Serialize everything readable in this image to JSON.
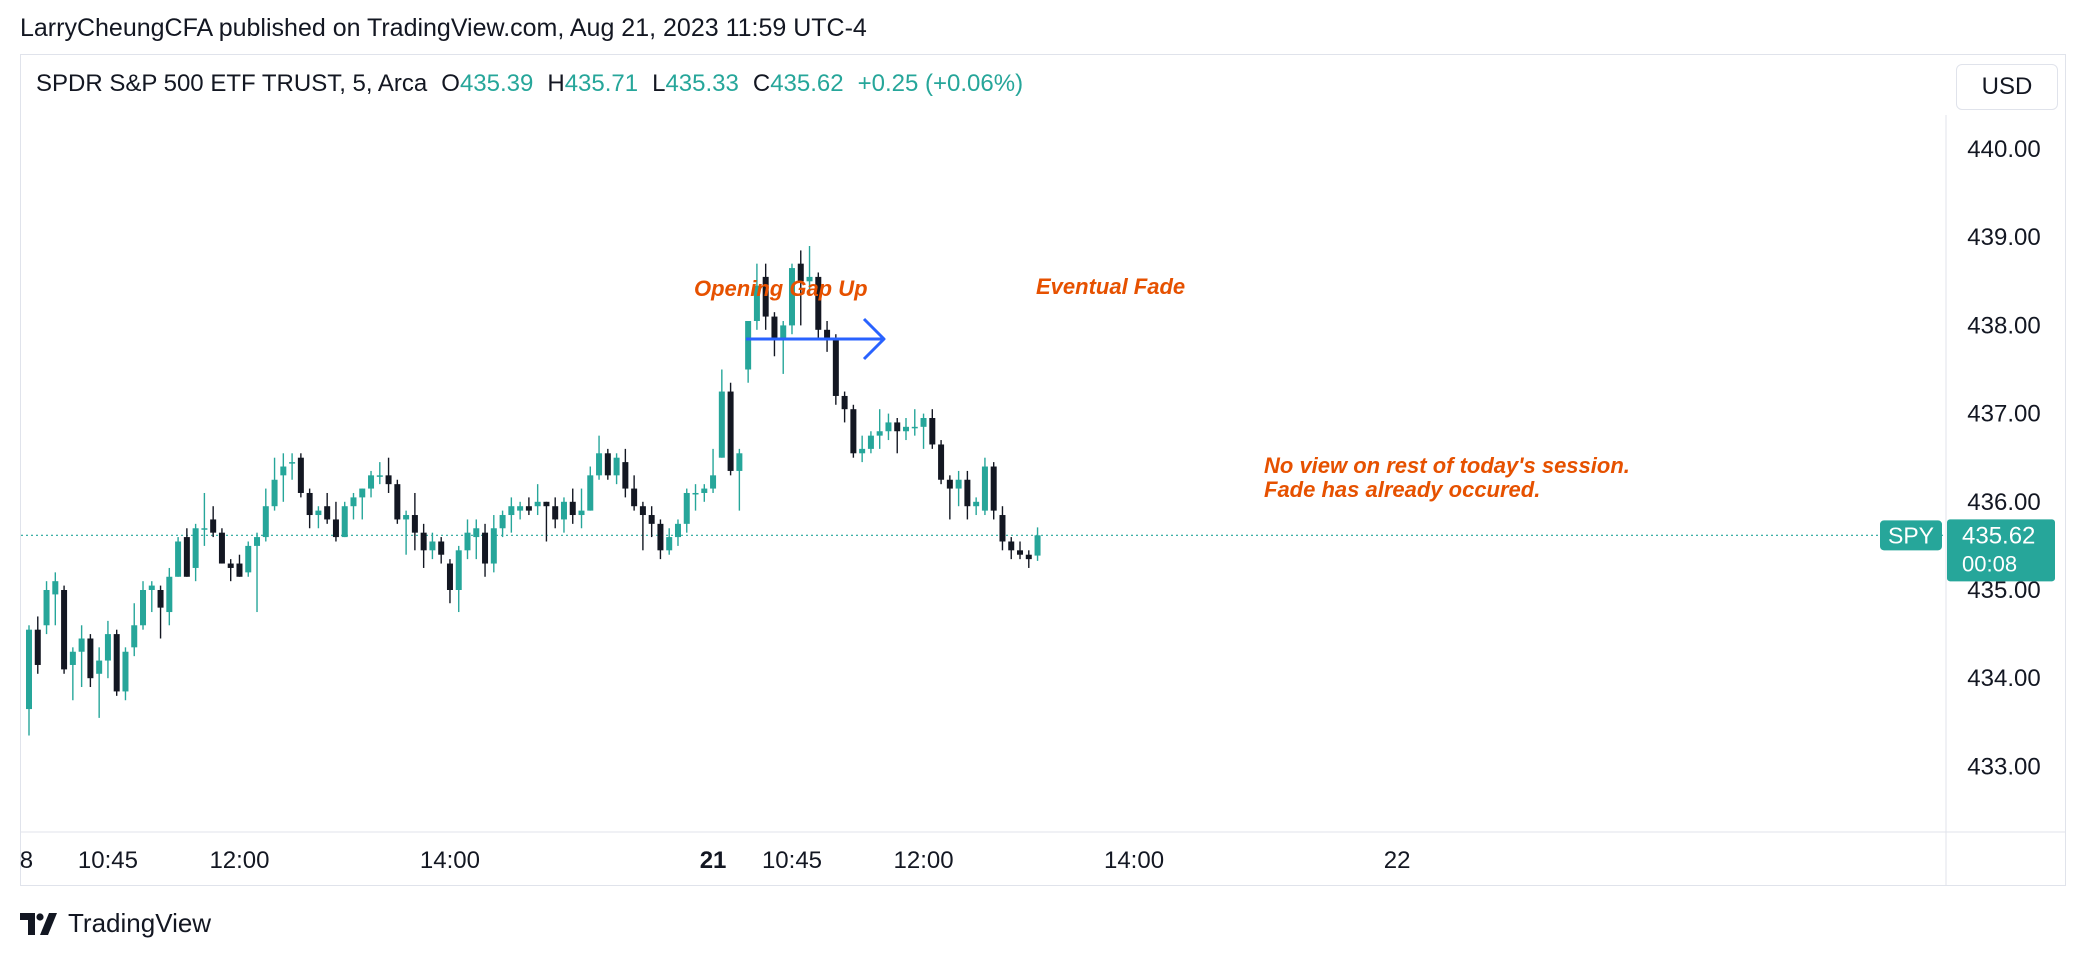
{
  "publisher_line": "LarryCheungCFA published on TradingView.com, Aug 21, 2023 11:59 UTC-4",
  "legend": {
    "symbol": "SPDR S&P 500 ETF TRUST, 5, Arca",
    "o_label": "O",
    "o_value": "435.39",
    "h_label": "H",
    "h_value": "435.71",
    "l_label": "L",
    "l_value": "435.33",
    "c_label": "C",
    "c_value": "435.62",
    "change": "+0.25 (+0.06%)"
  },
  "currency": "USD",
  "brand": "TradingView",
  "colors": {
    "up": "#26a69a",
    "down": "#131722",
    "annotation": "#e65100",
    "arrow": "#2962ff",
    "grid_line": "#e0e3eb"
  },
  "chart_data": {
    "type": "candlestick",
    "y_ticks": [
      "440.00",
      "439.00",
      "438.00",
      "437.00",
      "436.00",
      "435.00",
      "434.00",
      "433.00"
    ],
    "ylim": [
      432.55,
      440.35
    ],
    "x_ticks": [
      {
        "label": "8",
        "bar": -0.3,
        "bold": false
      },
      {
        "label": "10:45",
        "bar": 9,
        "bold": false
      },
      {
        "label": "12:00",
        "bar": 24,
        "bold": false
      },
      {
        "label": "14:00",
        "bar": 48,
        "bold": false
      },
      {
        "label": "21",
        "bar": 78,
        "bold": true
      },
      {
        "label": "10:45",
        "bar": 87,
        "bold": false
      },
      {
        "label": "12:00",
        "bar": 102,
        "bold": false
      },
      {
        "label": "14:00",
        "bar": 126,
        "bold": false
      },
      {
        "label": "22",
        "bar": 156,
        "bold": false
      }
    ],
    "last_price": {
      "symbol": "SPY",
      "price": "435.62",
      "countdown": "00:08",
      "value": 435.62
    },
    "annotations": [
      {
        "text": "Opening Gap Up"
      },
      {
        "text": "Eventual Fade"
      },
      {
        "text": "No view on rest of today's session."
      },
      {
        "text": "Fade has already occured."
      }
    ],
    "candles": [
      [
        433.65,
        434.55,
        433.35,
        434.6
      ],
      [
        434.55,
        434.15,
        434.05,
        434.7
      ],
      [
        434.6,
        435.0,
        434.5,
        435.1
      ],
      [
        434.95,
        435.1,
        434.6,
        435.2
      ],
      [
        435.0,
        434.1,
        434.05,
        435.05
      ],
      [
        434.15,
        434.3,
        433.75,
        434.35
      ],
      [
        434.3,
        434.45,
        433.9,
        434.6
      ],
      [
        434.45,
        434.0,
        433.9,
        434.5
      ],
      [
        434.05,
        434.2,
        433.55,
        434.35
      ],
      [
        434.2,
        434.5,
        434.0,
        434.65
      ],
      [
        434.5,
        433.85,
        433.8,
        434.55
      ],
      [
        433.85,
        434.3,
        433.75,
        434.35
      ],
      [
        434.35,
        434.6,
        434.25,
        434.85
      ],
      [
        434.6,
        435.0,
        434.55,
        435.1
      ],
      [
        435.0,
        435.05,
        434.75,
        435.1
      ],
      [
        435.0,
        434.8,
        434.45,
        435.05
      ],
      [
        434.75,
        435.15,
        434.6,
        435.25
      ],
      [
        435.15,
        435.55,
        435.15,
        435.6
      ],
      [
        435.6,
        435.15,
        435.15,
        435.7
      ],
      [
        435.25,
        435.7,
        435.1,
        435.75
      ],
      [
        435.7,
        435.7,
        435.5,
        436.1
      ],
      [
        435.8,
        435.65,
        435.6,
        435.95
      ],
      [
        435.65,
        435.3,
        435.3,
        435.7
      ],
      [
        435.3,
        435.25,
        435.1,
        435.35
      ],
      [
        435.3,
        435.15,
        435.15,
        435.4
      ],
      [
        435.2,
        435.5,
        435.15,
        435.55
      ],
      [
        435.5,
        435.6,
        434.75,
        435.65
      ],
      [
        435.6,
        435.95,
        435.55,
        436.15
      ],
      [
        435.95,
        436.25,
        435.9,
        436.5
      ],
      [
        436.3,
        436.4,
        436.0,
        436.55
      ],
      [
        436.45,
        436.45,
        436.25,
        436.55
      ],
      [
        436.5,
        436.1,
        436.05,
        436.55
      ],
      [
        436.1,
        435.85,
        435.7,
        436.15
      ],
      [
        435.85,
        435.9,
        435.7,
        435.95
      ],
      [
        435.95,
        435.8,
        435.75,
        436.1
      ],
      [
        435.8,
        435.6,
        435.55,
        436.0
      ],
      [
        435.6,
        435.95,
        435.6,
        436.0
      ],
      [
        435.95,
        436.05,
        435.8,
        436.1
      ],
      [
        436.05,
        436.15,
        435.8,
        436.15
      ],
      [
        436.15,
        436.3,
        436.05,
        436.35
      ],
      [
        436.3,
        436.3,
        436.2,
        436.45
      ],
      [
        436.3,
        436.2,
        436.1,
        436.5
      ],
      [
        436.2,
        435.8,
        435.75,
        436.25
      ],
      [
        435.8,
        435.85,
        435.4,
        435.9
      ],
      [
        435.85,
        435.65,
        435.45,
        436.1
      ],
      [
        435.65,
        435.45,
        435.25,
        435.75
      ],
      [
        435.45,
        435.55,
        435.35,
        435.65
      ],
      [
        435.55,
        435.4,
        435.3,
        435.6
      ],
      [
        435.3,
        435.0,
        434.85,
        435.35
      ],
      [
        435.0,
        435.45,
        434.75,
        435.5
      ],
      [
        435.45,
        435.65,
        435.35,
        435.8
      ],
      [
        435.6,
        435.7,
        435.35,
        435.8
      ],
      [
        435.65,
        435.3,
        435.15,
        435.75
      ],
      [
        435.3,
        435.7,
        435.2,
        435.85
      ],
      [
        435.7,
        435.85,
        435.6,
        435.9
      ],
      [
        435.85,
        435.95,
        435.65,
        436.05
      ],
      [
        435.9,
        435.95,
        435.8,
        436.0
      ],
      [
        435.95,
        435.9,
        435.85,
        436.05
      ],
      [
        435.95,
        436.0,
        435.85,
        436.2
      ],
      [
        436.0,
        435.95,
        435.55,
        436.0
      ],
      [
        435.95,
        435.8,
        435.7,
        436.05
      ],
      [
        435.8,
        436.0,
        435.65,
        436.05
      ],
      [
        436.0,
        435.85,
        435.75,
        436.15
      ],
      [
        435.85,
        435.9,
        435.7,
        436.15
      ],
      [
        435.9,
        436.3,
        435.9,
        436.4
      ],
      [
        436.3,
        436.55,
        436.25,
        436.75
      ],
      [
        436.55,
        436.3,
        436.25,
        436.6
      ],
      [
        436.3,
        436.5,
        436.2,
        436.55
      ],
      [
        436.45,
        436.15,
        436.05,
        436.6
      ],
      [
        436.15,
        435.95,
        435.9,
        436.3
      ],
      [
        435.95,
        435.85,
        435.45,
        436.0
      ],
      [
        435.85,
        435.75,
        435.6,
        435.95
      ],
      [
        435.75,
        435.45,
        435.35,
        435.8
      ],
      [
        435.45,
        435.6,
        435.4,
        435.7
      ],
      [
        435.6,
        435.75,
        435.5,
        435.8
      ],
      [
        435.75,
        436.1,
        435.65,
        436.15
      ],
      [
        436.1,
        436.1,
        435.9,
        436.2
      ],
      [
        436.1,
        436.15,
        436.0,
        436.2
      ],
      [
        436.15,
        436.3,
        436.1,
        436.6
      ],
      [
        436.5,
        437.25,
        436.5,
        437.5
      ],
      [
        437.25,
        436.35,
        436.3,
        437.35
      ],
      [
        436.35,
        436.55,
        435.9,
        436.6
      ],
      [
        437.5,
        438.05,
        437.35,
        438.05
      ],
      [
        438.05,
        438.45,
        437.95,
        438.7
      ],
      [
        438.55,
        438.1,
        437.95,
        438.7
      ],
      [
        438.1,
        437.85,
        437.65,
        438.15
      ],
      [
        437.85,
        438.0,
        437.45,
        438.05
      ],
      [
        438.0,
        438.65,
        437.9,
        438.7
      ],
      [
        438.7,
        438.5,
        438.0,
        438.85
      ],
      [
        438.5,
        438.55,
        438.35,
        438.9
      ],
      [
        438.55,
        437.95,
        437.85,
        438.6
      ],
      [
        437.95,
        437.85,
        437.7,
        438.05
      ],
      [
        437.85,
        437.2,
        437.1,
        437.9
      ],
      [
        437.2,
        437.05,
        436.9,
        437.25
      ],
      [
        437.05,
        436.55,
        436.5,
        437.1
      ],
      [
        436.55,
        436.6,
        436.45,
        436.75
      ],
      [
        436.6,
        436.75,
        436.55,
        436.8
      ],
      [
        436.75,
        436.8,
        436.6,
        437.05
      ],
      [
        436.8,
        436.9,
        436.7,
        437.0
      ],
      [
        436.9,
        436.8,
        436.55,
        436.95
      ],
      [
        436.8,
        436.85,
        436.7,
        436.95
      ],
      [
        436.85,
        436.85,
        436.75,
        437.05
      ],
      [
        436.85,
        436.95,
        436.6,
        437.0
      ],
      [
        436.95,
        436.65,
        436.6,
        437.05
      ],
      [
        436.65,
        436.25,
        436.2,
        436.7
      ],
      [
        436.25,
        436.15,
        435.8,
        436.3
      ],
      [
        436.15,
        436.25,
        435.95,
        436.35
      ],
      [
        436.25,
        435.95,
        435.8,
        436.35
      ],
      [
        435.95,
        436.0,
        435.85,
        436.05
      ],
      [
        435.9,
        436.4,
        435.85,
        436.5
      ],
      [
        436.4,
        435.9,
        435.8,
        436.45
      ],
      [
        435.85,
        435.55,
        435.45,
        435.95
      ],
      [
        435.55,
        435.45,
        435.35,
        435.6
      ],
      [
        435.45,
        435.4,
        435.35,
        435.55
      ],
      [
        435.4,
        435.35,
        435.25,
        435.45
      ],
      [
        435.39,
        435.62,
        435.33,
        435.71
      ]
    ]
  }
}
